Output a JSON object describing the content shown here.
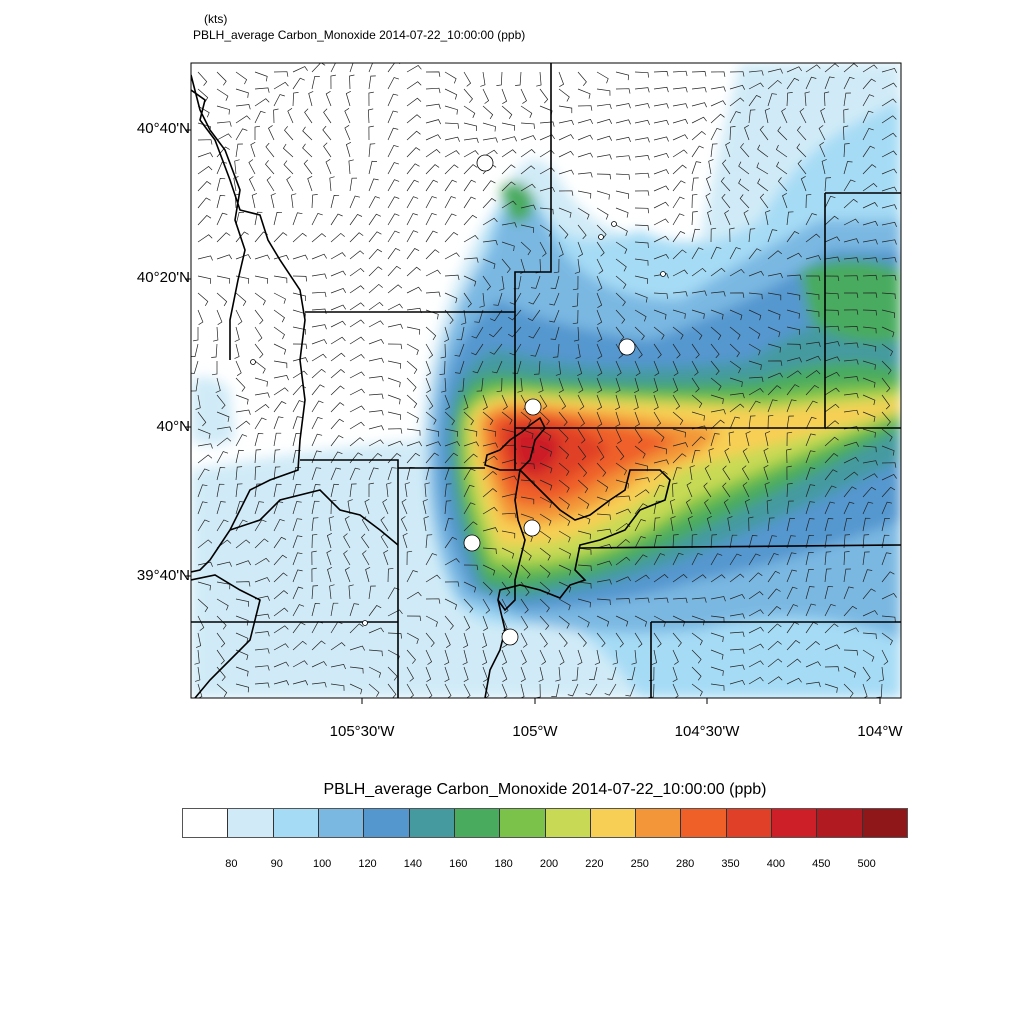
{
  "header": {
    "wind_units": "(kts)",
    "title": "PBLH_average Carbon_Monoxide   2014-07-22_10:00:00   (ppb)"
  },
  "chart_data": {
    "type": "heatmap",
    "title": "PBLH_average Carbon_Monoxide   2014-07-22_10:00:00   (ppb)",
    "variable": "PBLH_average Carbon_Monoxide",
    "time": "2014-07-22_10:00:00",
    "units": "ppb",
    "overlay": "wind barbs (kts)",
    "lat_ticks": [
      "40°40'N",
      "40°20'N",
      "40°N",
      "39°40'N"
    ],
    "lon_ticks": [
      "105°30'W",
      "105°W",
      "104°30'W",
      "104°W"
    ],
    "colorbar": {
      "title": "PBLH_average Carbon_Monoxide   2014-07-22_10:00:00  (ppb)",
      "levels": [
        "80",
        "90",
        "100",
        "120",
        "140",
        "160",
        "180",
        "200",
        "220",
        "250",
        "280",
        "350",
        "400",
        "450",
        "500"
      ],
      "colors": [
        "#ffffff",
        "#d0ebf7",
        "#a6dbf5",
        "#7ab8e2",
        "#5497cf",
        "#459aa0",
        "#48ab5e",
        "#7bc24a",
        "#c8da55",
        "#f8cf55",
        "#f39639",
        "#ef6029",
        "#e04028",
        "#cc1f28",
        "#b21a22",
        "#901719"
      ]
    }
  }
}
